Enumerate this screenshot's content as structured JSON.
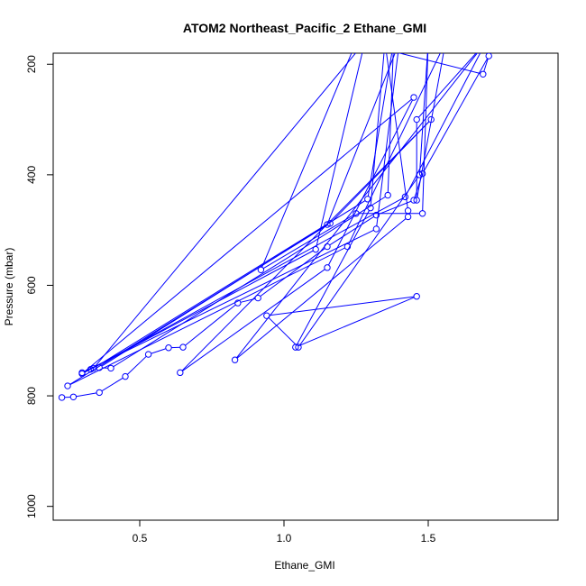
{
  "chart_data": {
    "type": "line",
    "title": "ATOM2 Northeast_Pacific_2 Ethane_GMI",
    "xlabel": "Ethane_GMI",
    "ylabel": "Pressure (mbar)",
    "xlim": [
      0.2,
      1.95
    ],
    "ylim": [
      1025,
      180
    ],
    "y_reversed": true,
    "x_ticks": [
      0.5,
      1.0,
      1.5
    ],
    "x_tick_labels": [
      "0.5",
      "1.0",
      "1.5"
    ],
    "y_ticks": [
      200,
      400,
      600,
      800,
      1000
    ],
    "y_tick_labels": [
      "200",
      "400",
      "600",
      "800",
      "1000"
    ],
    "grid": false,
    "legend": "none",
    "color": "#0000ff",
    "series": [
      {
        "points": [
          [
            0.23,
            803
          ],
          [
            0.27,
            802
          ],
          [
            0.36,
            794
          ],
          [
            0.45,
            765
          ],
          [
            0.53,
            725
          ],
          [
            0.6,
            713
          ],
          [
            0.65,
            712
          ],
          [
            0.84,
            632
          ],
          [
            0.91,
            623
          ],
          [
            1.15,
            530
          ],
          [
            1.32,
            473
          ],
          [
            1.45,
            446
          ],
          [
            1.48,
            398
          ],
          [
            1.71,
            185
          ],
          [
            1.69,
            218
          ],
          [
            1.25,
            160
          ],
          [
            0.92,
            572
          ],
          [
            1.25,
            470
          ],
          [
            1.48,
            470
          ],
          [
            1.5,
            160
          ],
          [
            1.47,
            400
          ],
          [
            1.05,
            712
          ],
          [
            0.94,
            655
          ],
          [
            1.46,
            620
          ],
          [
            1.04,
            712
          ],
          [
            1.3,
            460
          ],
          [
            1.35,
            160
          ],
          [
            1.43,
            465
          ],
          [
            1.43,
            476
          ],
          [
            0.83,
            735
          ],
          [
            1.7,
            160
          ],
          [
            1.42,
            440
          ],
          [
            0.33,
            752
          ],
          [
            0.3,
            758
          ],
          [
            1.32,
            498
          ],
          [
            1.4,
            160
          ],
          [
            1.15,
            490
          ],
          [
            0.36,
            749
          ],
          [
            0.4,
            750
          ],
          [
            1.36,
            437
          ],
          [
            1.38,
            160
          ],
          [
            1.29,
            444
          ],
          [
            0.34,
            750
          ],
          [
            1.28,
            160
          ],
          [
            1.11,
            535
          ],
          [
            0.3,
            760
          ],
          [
            1.45,
            260
          ],
          [
            1.15,
            568
          ],
          [
            0.64,
            758
          ],
          [
            1.51,
            300
          ],
          [
            1.16,
            488
          ],
          [
            0.25,
            782
          ],
          [
            1.22,
            530
          ],
          [
            1.56,
            160
          ],
          [
            1.46,
            446
          ],
          [
            1.46,
            300
          ],
          [
            1.7,
            160
          ]
        ]
      }
    ]
  }
}
